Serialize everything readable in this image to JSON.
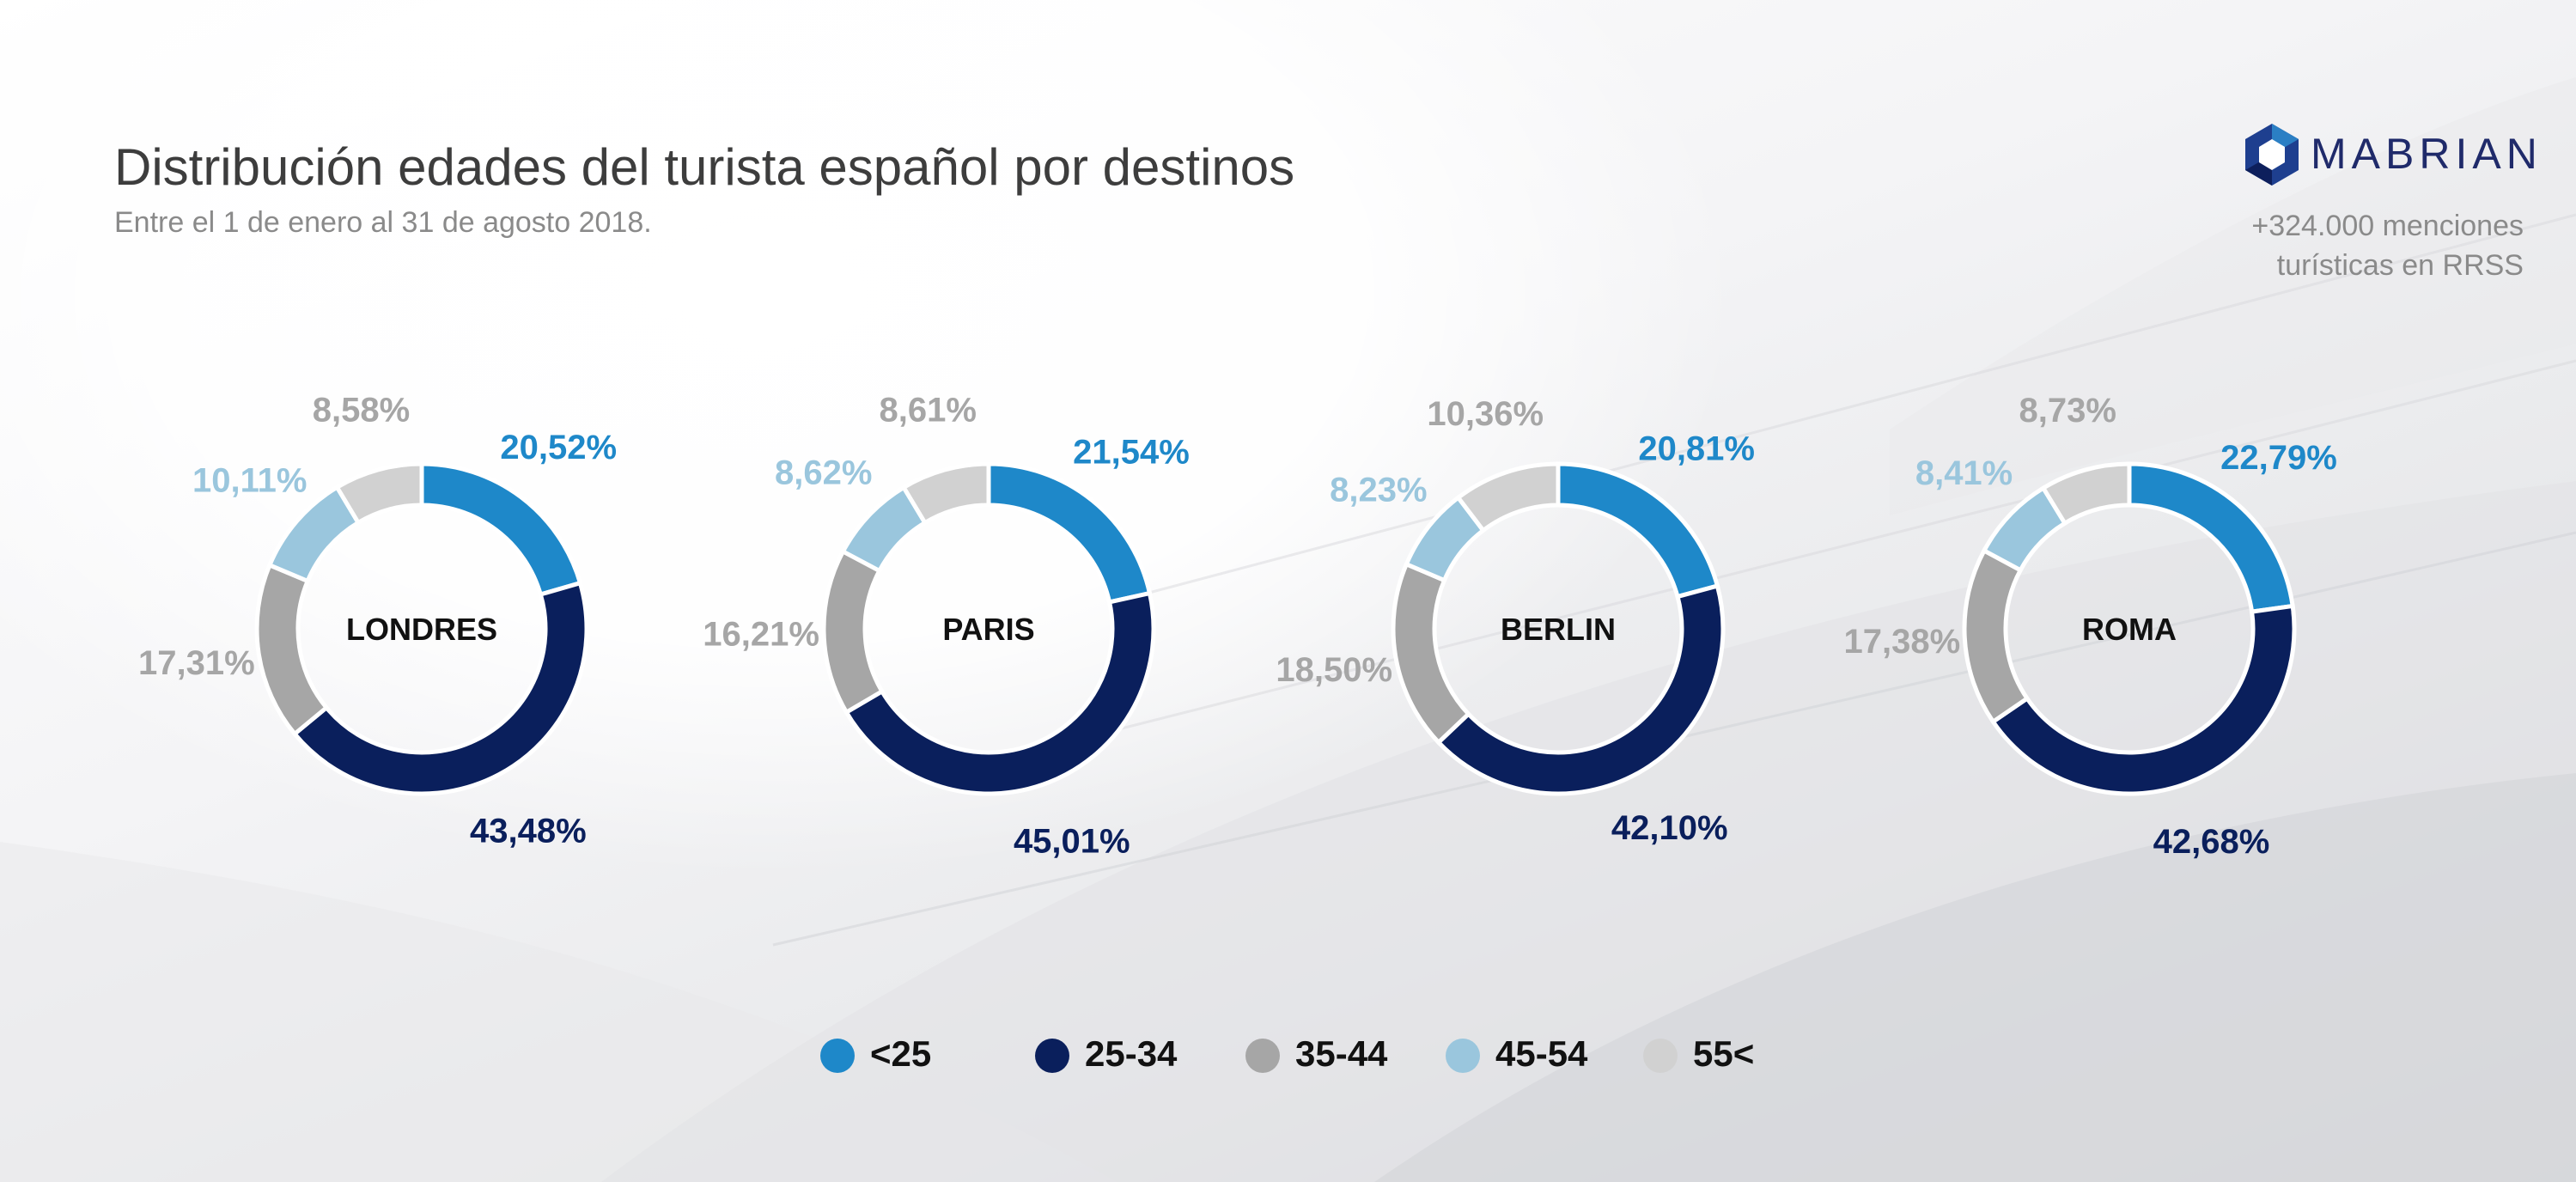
{
  "header": {
    "title": "Distribución edades del turista español por destinos",
    "subtitle": "Entre el 1 de enero al 31 de agosto 2018."
  },
  "brand": {
    "name": "MABRIAN",
    "mentions_line1": "+324.000 menciones",
    "mentions_line2": "turísticas en RRSS"
  },
  "colors": {
    "lt25": "#1e88c9",
    "25_34": "#0a1f5c",
    "35_44": "#a6a6a6",
    "45_54": "#9ac6dd",
    "55plus": "#d1d1d1"
  },
  "chart_data": {
    "type": "pie",
    "subtype": "donut",
    "title": "Distribución edades del turista español por destinos",
    "categories": [
      "<25",
      "25-34",
      "35-44",
      "45-54",
      "55<"
    ],
    "series": [
      {
        "name": "LONDRES",
        "values": [
          20.52,
          43.48,
          17.31,
          10.11,
          8.58
        ],
        "labels": [
          "20,52%",
          "43,48%",
          "17,31%",
          "10,11%",
          "8,58%"
        ]
      },
      {
        "name": "PARIS",
        "values": [
          21.54,
          45.01,
          16.21,
          8.62,
          8.61
        ],
        "labels": [
          "21,54%",
          "45,01%",
          "16,21%",
          "8,62%",
          "8,61%"
        ]
      },
      {
        "name": "BERLIN",
        "values": [
          20.81,
          42.1,
          18.5,
          8.23,
          10.36
        ],
        "labels": [
          "20,81%",
          "42,10%",
          "18,50%",
          "8,23%",
          "10,36%"
        ]
      },
      {
        "name": "ROMA",
        "values": [
          22.79,
          42.68,
          17.38,
          8.41,
          8.73
        ],
        "labels": [
          "22,79%",
          "42,68%",
          "17,38%",
          "8,41%",
          "8,73%"
        ]
      }
    ],
    "legend": [
      "<25",
      "25-34",
      "35-44",
      "45-54",
      "55<"
    ],
    "legend_position": "bottom"
  }
}
